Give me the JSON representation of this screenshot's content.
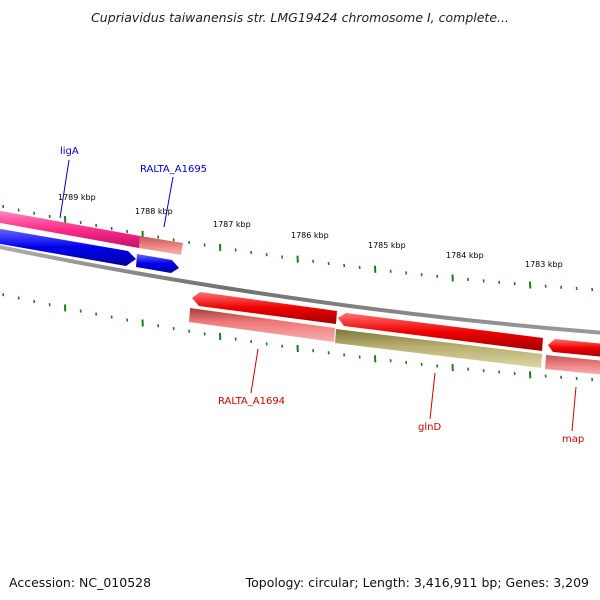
{
  "title": "Cupriavidus taiwanensis str. LMG19424 chromosome I, complete...",
  "footer": {
    "accession": "Accession: NC_010528",
    "summary": "Topology: circular; Length: 3,416,911 bp; Genes: 3,209"
  },
  "scale_ticks": [
    {
      "label": "1789 kbp"
    },
    {
      "label": "1788 kbp"
    },
    {
      "label": "1787 kbp"
    },
    {
      "label": "1786 kbp"
    },
    {
      "label": "1785 kbp"
    },
    {
      "label": "1784 kbp"
    },
    {
      "label": "1783 kbp"
    }
  ],
  "gene_labels": [
    {
      "name": "ligA",
      "color": "#0000cc"
    },
    {
      "name": "RALTA_A1695",
      "color": "#0000cc"
    },
    {
      "name": "RALTA_A1694",
      "color": "#cc0000"
    },
    {
      "name": "glnD",
      "color": "#cc0000"
    },
    {
      "name": "map",
      "color": "#cc0000"
    }
  ],
  "colors": {
    "backbone": "#808080",
    "tick": "#1f7a1f",
    "forward_gene": "#0000ee",
    "forward_cds": "#ff2d8a",
    "reverse_gene": "#ee0000",
    "reverse_cds_light": "#ee7777",
    "reverse_cds_olive": "#b8b070",
    "light_cds": "#ee8080"
  }
}
